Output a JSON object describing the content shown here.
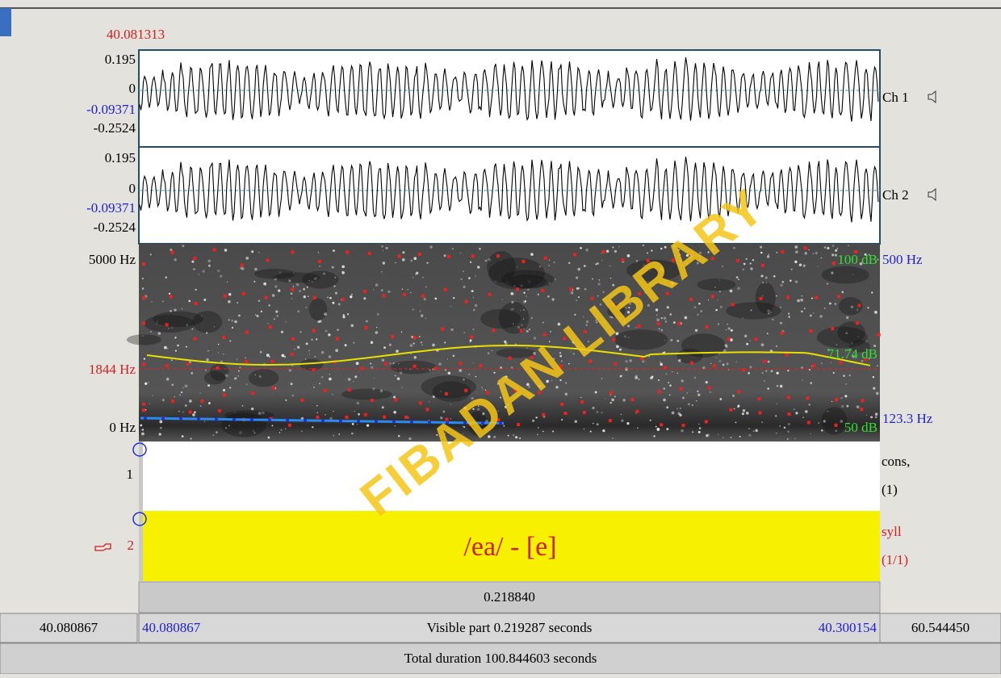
{
  "cursor_time": "40.081313",
  "channels": [
    {
      "name": "Ch 1",
      "max": "0.195",
      "zero": "0",
      "cursor_value": "-0.09371",
      "min": "-0.2524"
    },
    {
      "name": "Ch 2",
      "max": "0.195",
      "zero": "0",
      "cursor_value": "-0.09371",
      "min": "-0.2524"
    }
  ],
  "spectrogram": {
    "max_freq": "5000 Hz",
    "cursor_freq": "1844 Hz",
    "min_freq": "0 Hz",
    "max_db": "100 dB",
    "cursor_db": "71.74 dB",
    "min_db": "50 dB",
    "pitch_max": "500 Hz",
    "pitch_value": "123.3 Hz"
  },
  "tiers": [
    {
      "number": "1",
      "name": "cons,",
      "count": "(1)"
    },
    {
      "number": "2",
      "name": "syll",
      "count": "(1/1)",
      "interval": "/ea/ - [e]"
    }
  ],
  "selection_duration": "0.218840",
  "footer": {
    "window_start": "40.080867",
    "visible_start": "40.080867",
    "visible_part": "Visible part 0.219287 seconds",
    "visible_end": "40.300154",
    "window_rest": "60.544450",
    "total": "Total duration 100.844603 seconds"
  },
  "watermark": "FIBADAN LIBRARY"
}
